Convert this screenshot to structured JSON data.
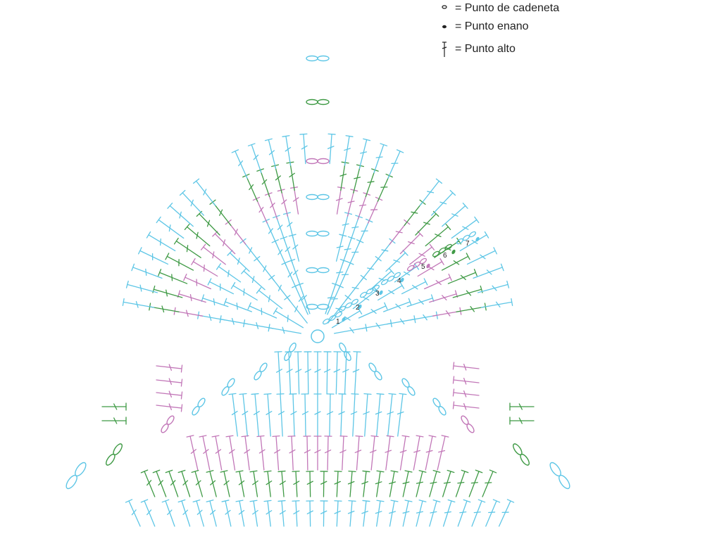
{
  "legend": [
    {
      "symbol": "chain-icon",
      "label": "= Punto de cadeneta"
    },
    {
      "symbol": "slip-stitch-icon",
      "label": "= Punto enano"
    },
    {
      "symbol": "double-crochet-icon",
      "label": "= Punto alto"
    }
  ],
  "round_labels": [
    "1",
    "2",
    "3",
    "4",
    "5",
    "6",
    "7"
  ],
  "colors": {
    "blue": "#5ec6e6",
    "green": "#3f9a45",
    "pink": "#c277b8",
    "text": "#222222"
  }
}
